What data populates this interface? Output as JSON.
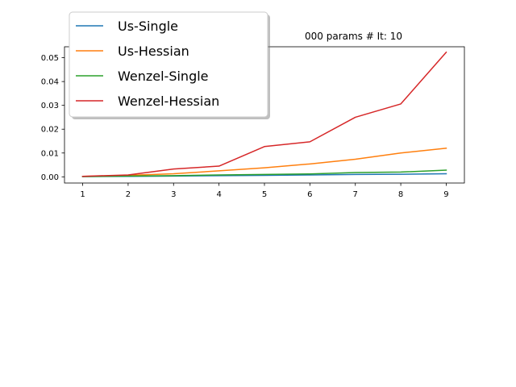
{
  "chart_data": {
    "type": "line",
    "title": "000 params # It: 10",
    "xlabel": "",
    "ylabel": "",
    "x": [
      1,
      2,
      3,
      4,
      5,
      6,
      7,
      8,
      9
    ],
    "xlim": [
      0.6,
      9.4
    ],
    "ylim": [
      -0.0026,
      0.0546
    ],
    "xticks": [
      "1",
      "2",
      "3",
      "4",
      "5",
      "6",
      "7",
      "8",
      "9"
    ],
    "yticks": [
      "0.00",
      "0.01",
      "0.02",
      "0.03",
      "0.04",
      "0.05"
    ],
    "grid": false,
    "legend_position": "top-left",
    "series": [
      {
        "name": "Us-Single",
        "color": "#1f77b4",
        "values": [
          0.0001,
          0.0002,
          0.0003,
          0.0005,
          0.0006,
          0.0008,
          0.001,
          0.0011,
          0.0013
        ]
      },
      {
        "name": "Us-Hessian",
        "color": "#ff7f0e",
        "values": [
          0.0002,
          0.0006,
          0.0013,
          0.0025,
          0.0038,
          0.0054,
          0.0074,
          0.01,
          0.012
        ]
      },
      {
        "name": "Wenzel-Single",
        "color": "#2ca02c",
        "values": [
          0.0001,
          0.0003,
          0.0005,
          0.0008,
          0.001,
          0.0012,
          0.0018,
          0.002,
          0.0028
        ]
      },
      {
        "name": "Wenzel-Hessian",
        "color": "#d62728",
        "values": [
          0.0002,
          0.0008,
          0.0033,
          0.0045,
          0.0127,
          0.0147,
          0.025,
          0.0306,
          0.0523
        ]
      }
    ]
  }
}
